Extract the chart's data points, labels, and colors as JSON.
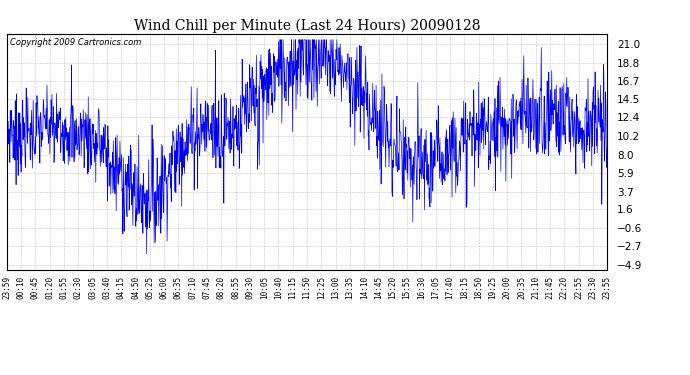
{
  "title": "Wind Chill per Minute (Last 24 Hours) 20090128",
  "copyright": "Copyright 2009 Cartronics.com",
  "line_color": "#0000EE",
  "background_color": "#ffffff",
  "plot_bg_color": "#ffffff",
  "grid_color": "#bbbbbb",
  "yticks": [
    21.0,
    18.8,
    16.7,
    14.5,
    12.4,
    10.2,
    8.0,
    5.9,
    3.7,
    1.6,
    -0.6,
    -2.7,
    -4.9
  ],
  "ylim": [
    -5.5,
    22.2
  ],
  "xtick_labels": [
    "23:59",
    "00:10",
    "00:45",
    "01:20",
    "01:55",
    "02:30",
    "03:05",
    "03:40",
    "04:15",
    "04:50",
    "05:25",
    "06:00",
    "06:35",
    "07:10",
    "07:45",
    "08:20",
    "08:55",
    "09:30",
    "10:05",
    "10:40",
    "11:15",
    "11:50",
    "12:25",
    "13:00",
    "13:35",
    "14:10",
    "14:45",
    "15:20",
    "15:55",
    "16:30",
    "17:05",
    "17:40",
    "18:15",
    "18:50",
    "19:25",
    "20:00",
    "20:35",
    "21:10",
    "21:45",
    "22:20",
    "22:55",
    "23:30",
    "23:55"
  ],
  "figsize": [
    6.9,
    3.75
  ],
  "dpi": 100
}
